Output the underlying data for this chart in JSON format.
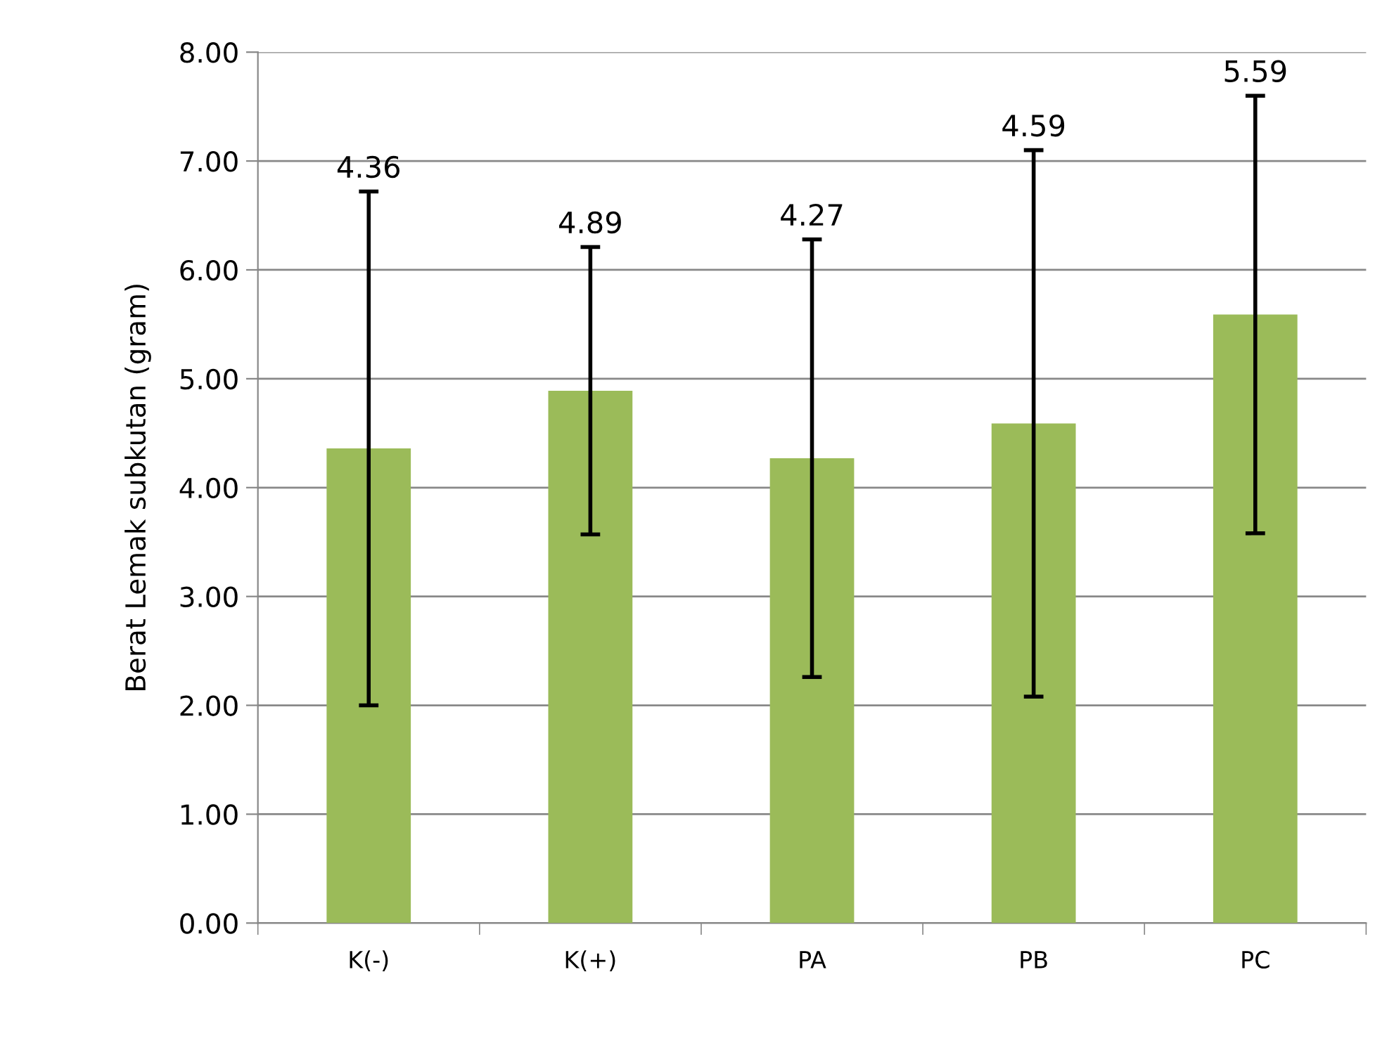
{
  "chart_data": {
    "type": "bar",
    "ylabel": "Berat Lemak subkutan (gram)",
    "categories": [
      "K(-)",
      "K(+)",
      "PA",
      "PB",
      "PC"
    ],
    "values": [
      4.36,
      4.89,
      4.27,
      4.59,
      5.59
    ],
    "errors": [
      2.36,
      1.32,
      2.01,
      2.51,
      2.01
    ],
    "color": "#9bbb59",
    "annotations": [
      {
        "text": "4.36",
        "x": "K(-)",
        "y": 6.72
      },
      {
        "text": "4.89",
        "x": "K(+)",
        "y": 6.21
      },
      {
        "text": "4.27",
        "x": "PA",
        "y": 6.28
      },
      {
        "text": "4.59",
        "x": "PB",
        "y": 7.1
      },
      {
        "text": "5.59",
        "x": "PC",
        "y": 7.6
      }
    ],
    "ylim": [
      0,
      8
    ],
    "yticks": [
      {
        "value": 0,
        "label": "0.00"
      },
      {
        "value": 1,
        "label": "1.00"
      },
      {
        "value": 2,
        "label": "2.00"
      },
      {
        "value": 3,
        "label": "3.00"
      },
      {
        "value": 4,
        "label": "4.00"
      },
      {
        "value": 5,
        "label": "5.00"
      },
      {
        "value": 6,
        "label": "6.00"
      },
      {
        "value": 7,
        "label": "7.00"
      },
      {
        "value": 8,
        "label": "8.00"
      }
    ],
    "grid": "y",
    "legend": false
  }
}
